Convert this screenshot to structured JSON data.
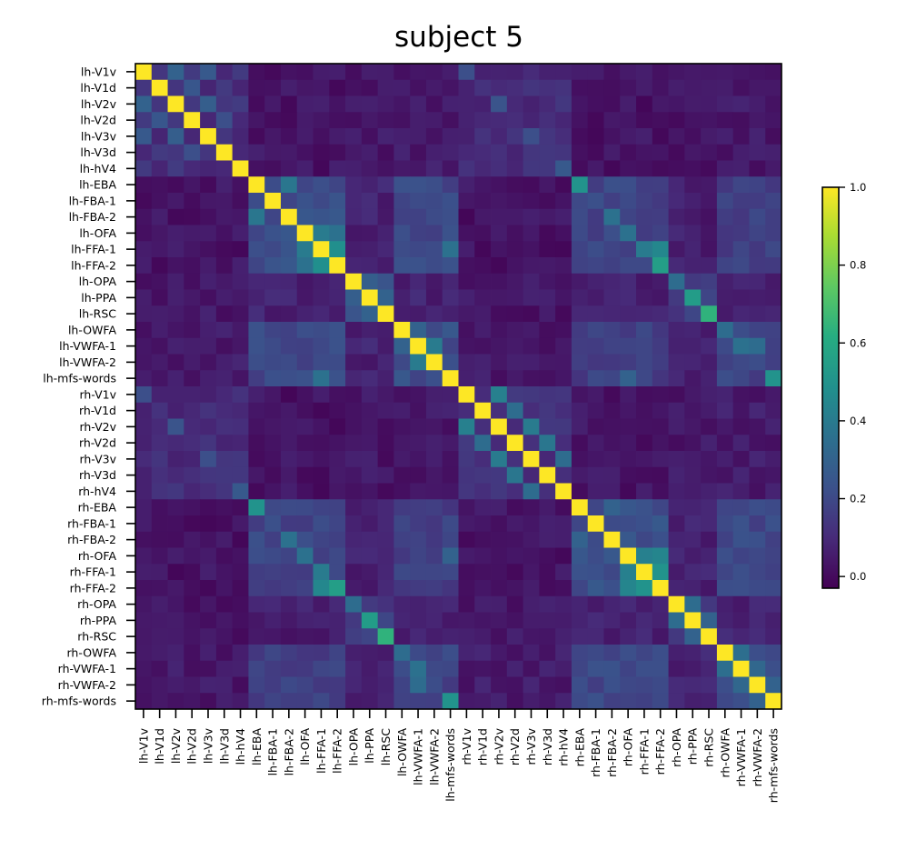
{
  "chart_data": {
    "type": "heatmap",
    "title": "subject 5",
    "labels": [
      "lh-V1v",
      "lh-V1d",
      "lh-V2v",
      "lh-V2d",
      "lh-V3v",
      "lh-V3d",
      "lh-hV4",
      "lh-EBA",
      "lh-FBA-1",
      "lh-FBA-2",
      "lh-OFA",
      "lh-FFA-1",
      "lh-FFA-2",
      "lh-OPA",
      "lh-PPA",
      "lh-RSC",
      "lh-OWFA",
      "lh-VWFA-1",
      "lh-VWFA-2",
      "lh-mfs-words",
      "rh-V1v",
      "rh-V1d",
      "rh-V2v",
      "rh-V2d",
      "rh-V3v",
      "rh-V3d",
      "rh-hV4",
      "rh-EBA",
      "rh-FBA-1",
      "rh-FBA-2",
      "rh-OFA",
      "rh-FFA-1",
      "rh-FFA-2",
      "rh-OPA",
      "rh-PPA",
      "rh-RSC",
      "rh-OWFA",
      "rh-VWFA-1",
      "rh-VWFA-2",
      "rh-mfs-words"
    ],
    "colormap": "viridis",
    "vmin": -0.03,
    "vmax": 1.0,
    "colorbar_ticks": [
      "0.0",
      "0.2",
      "0.4",
      "0.6",
      "0.8",
      "1.0"
    ],
    "colorbar_tick_values": [
      0.0,
      0.2,
      0.4,
      0.6,
      0.8,
      1.0
    ],
    "group_boundaries": [
      7,
      13,
      16,
      20
    ],
    "within_hemi_block_values": {
      "early_visual": 0.12,
      "face_body": 0.22,
      "place": 0.18,
      "word": 0.22
    },
    "within_hemi_cross_values": {
      "early_visual_vs_face": 0.03,
      "face_vs_place": 0.07,
      "face_vs_word": 0.2,
      "place_vs_word": 0.07,
      "early_visual_vs_place": 0.04,
      "early_visual_vs_word": 0.05
    },
    "cross_hemi_scale": 0.85,
    "strong_pairs": [
      {
        "a": "lh-V1v",
        "b": "lh-V2v",
        "v": 0.3
      },
      {
        "a": "lh-V1v",
        "b": "lh-V3v",
        "v": 0.26
      },
      {
        "a": "lh-V1d",
        "b": "lh-V2d",
        "v": 0.25
      },
      {
        "a": "lh-V2v",
        "b": "lh-V3v",
        "v": 0.28
      },
      {
        "a": "lh-V2d",
        "b": "lh-V3d",
        "v": 0.22
      },
      {
        "a": "lh-EBA",
        "b": "lh-FBA-2",
        "v": 0.38
      },
      {
        "a": "lh-OFA",
        "b": "lh-FFA-1",
        "v": 0.4
      },
      {
        "a": "lh-FFA-1",
        "b": "lh-FFA-2",
        "v": 0.48
      },
      {
        "a": "lh-OFA",
        "b": "lh-FFA-2",
        "v": 0.36
      },
      {
        "a": "lh-OPA",
        "b": "lh-PPA",
        "v": 0.28
      },
      {
        "a": "lh-OPA",
        "b": "lh-RSC",
        "v": 0.24
      },
      {
        "a": "lh-PPA",
        "b": "lh-RSC",
        "v": 0.3
      },
      {
        "a": "lh-VWFA-1",
        "b": "lh-VWFA-2",
        "v": 0.4
      },
      {
        "a": "lh-OWFA",
        "b": "lh-VWFA-1",
        "v": 0.3
      },
      {
        "a": "lh-mfs-words",
        "b": "lh-FFA-1",
        "v": 0.36
      },
      {
        "a": "rh-V1v",
        "b": "rh-V2v",
        "v": 0.42
      },
      {
        "a": "rh-V1d",
        "b": "rh-V2d",
        "v": 0.34
      },
      {
        "a": "rh-V2v",
        "b": "rh-V3v",
        "v": 0.4
      },
      {
        "a": "rh-V2d",
        "b": "rh-V3d",
        "v": 0.38
      },
      {
        "a": "rh-V3v",
        "b": "rh-hV4",
        "v": 0.34
      },
      {
        "a": "rh-EBA",
        "b": "rh-FBA-2",
        "v": 0.3
      },
      {
        "a": "rh-OFA",
        "b": "rh-FFA-1",
        "v": 0.42
      },
      {
        "a": "rh-FFA-1",
        "b": "rh-FFA-2",
        "v": 0.5
      },
      {
        "a": "rh-OFA",
        "b": "rh-FFA-2",
        "v": 0.44
      },
      {
        "a": "rh-OPA",
        "b": "rh-PPA",
        "v": 0.34
      },
      {
        "a": "rh-PPA",
        "b": "rh-RSC",
        "v": 0.3
      },
      {
        "a": "rh-OWFA",
        "b": "rh-VWFA-1",
        "v": 0.35
      },
      {
        "a": "rh-VWFA-1",
        "b": "rh-VWFA-2",
        "v": 0.32
      },
      {
        "a": "rh-mfs-words",
        "b": "rh-VWFA-2",
        "v": 0.3
      },
      {
        "a": "rh-mfs-words",
        "b": "lh-mfs-words",
        "v": 0.5
      },
      {
        "a": "rh-RSC",
        "b": "lh-RSC",
        "v": 0.64
      },
      {
        "a": "rh-PPA",
        "b": "lh-PPA",
        "v": 0.54
      },
      {
        "a": "rh-OPA",
        "b": "lh-OPA",
        "v": 0.34
      },
      {
        "a": "rh-EBA",
        "b": "lh-EBA",
        "v": 0.5
      },
      {
        "a": "rh-FFA-2",
        "b": "lh-FFA-2",
        "v": 0.55
      },
      {
        "a": "rh-FFA-2",
        "b": "lh-FFA-1",
        "v": 0.45
      },
      {
        "a": "rh-FFA-1",
        "b": "lh-FFA-1",
        "v": 0.4
      },
      {
        "a": "rh-OFA",
        "b": "lh-OFA",
        "v": 0.36
      },
      {
        "a": "rh-FBA-2",
        "b": "lh-FBA-2",
        "v": 0.36
      },
      {
        "a": "rh-VWFA-1",
        "b": "lh-VWFA-1",
        "v": 0.36
      },
      {
        "a": "rh-VWFA-2",
        "b": "lh-VWFA-1",
        "v": 0.34
      },
      {
        "a": "rh-OWFA",
        "b": "lh-OWFA",
        "v": 0.34
      },
      {
        "a": "rh-V1v",
        "b": "lh-V1v",
        "v": 0.22
      },
      {
        "a": "rh-V2v",
        "b": "lh-V2v",
        "v": 0.24
      },
      {
        "a": "rh-V3v",
        "b": "lh-V3v",
        "v": 0.22
      },
      {
        "a": "rh-hV4",
        "b": "lh-hV4",
        "v": 0.26
      },
      {
        "a": "rh-OFA",
        "b": "lh-mfs-words",
        "v": 0.3
      }
    ]
  }
}
